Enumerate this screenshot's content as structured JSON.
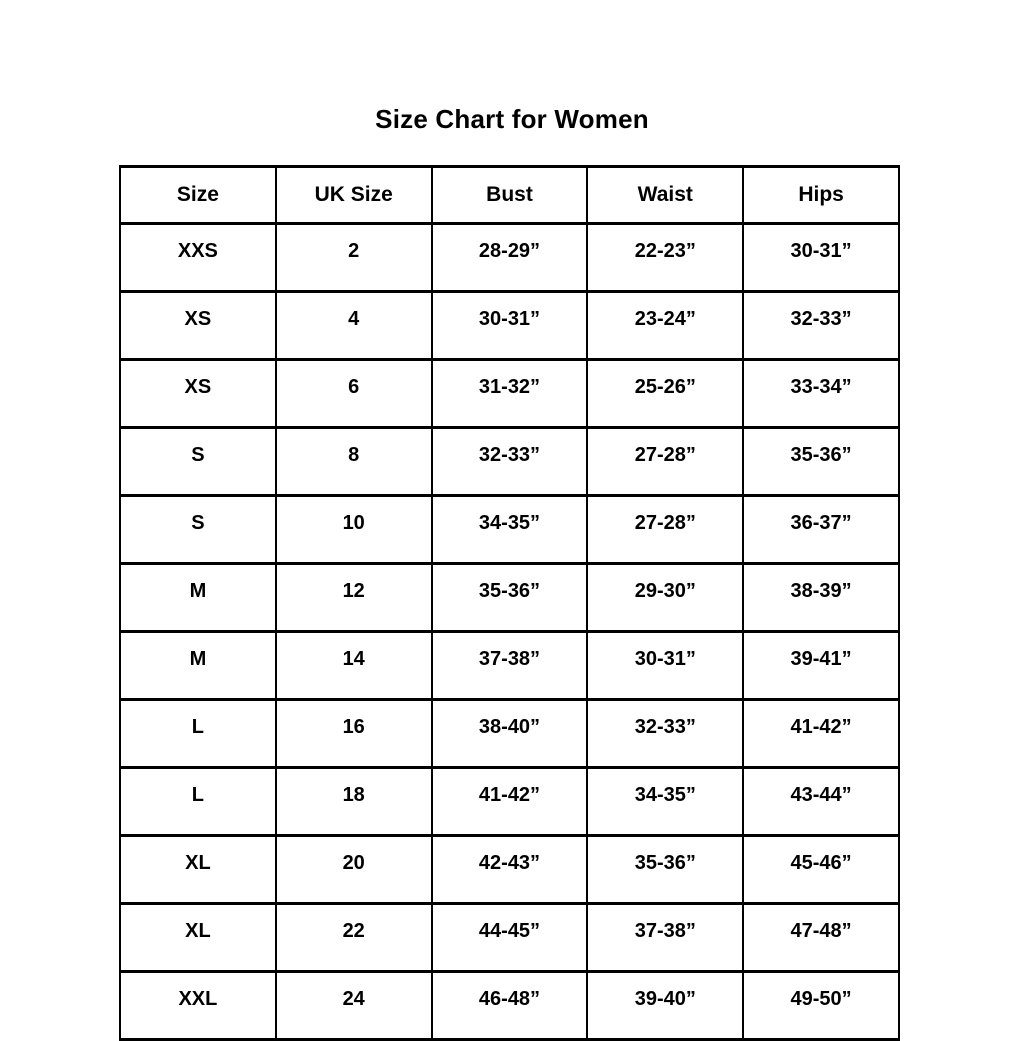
{
  "page": {
    "title": "Size Chart for Women"
  },
  "chart_data": {
    "type": "table",
    "title": "Size Chart for Women",
    "columns": [
      "Size",
      "UK Size",
      "Bust",
      "Waist",
      "Hips"
    ],
    "rows": [
      [
        "XXS",
        "2",
        "28-29”",
        "22-23”",
        "30-31”"
      ],
      [
        "XS",
        "4",
        "30-31”",
        "23-24”",
        "32-33”"
      ],
      [
        "XS",
        "6",
        "31-32”",
        "25-26”",
        "33-34”"
      ],
      [
        "S",
        "8",
        "32-33”",
        "27-28”",
        "35-36”"
      ],
      [
        "S",
        "10",
        "34-35”",
        "27-28”",
        "36-37”"
      ],
      [
        "M",
        "12",
        "35-36”",
        "29-30”",
        "38-39”"
      ],
      [
        "M",
        "14",
        "37-38”",
        "30-31”",
        "39-41”"
      ],
      [
        "L",
        "16",
        "38-40”",
        "32-33”",
        "41-42”"
      ],
      [
        "L",
        "18",
        "41-42”",
        "34-35”",
        "43-44”"
      ],
      [
        "XL",
        "20",
        "42-43”",
        "35-36”",
        "45-46”"
      ],
      [
        "XL",
        "22",
        "44-45”",
        "37-38”",
        "47-48”"
      ],
      [
        "XXL",
        "24",
        "46-48”",
        "39-40”",
        "49-50”"
      ]
    ],
    "layout": {
      "grid": "full-borders",
      "border_color": "#000000",
      "text_color": "#000000",
      "background": "#ffffff"
    }
  }
}
